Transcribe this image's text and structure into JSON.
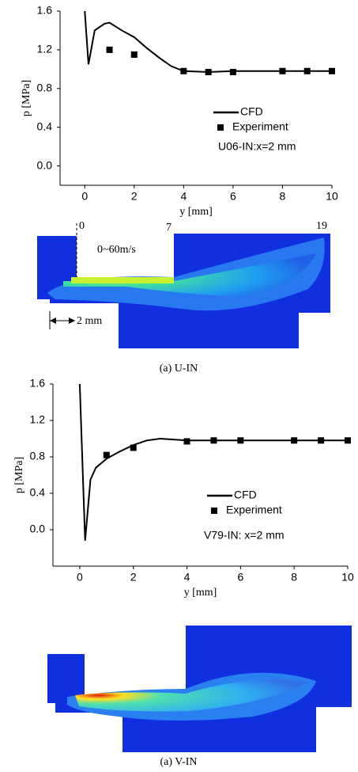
{
  "chart_data": [
    {
      "type": "line",
      "xlabel": "y [mm]",
      "ylabel": "p [MPa]",
      "annotation": "U06-IN:x=2 mm",
      "xlim": [
        -1,
        10
      ],
      "ylim": [
        -0.2,
        1.6
      ],
      "xticks": [
        0,
        2,
        4,
        6,
        8,
        10
      ],
      "yticks": [
        {
          "value": 0,
          "label": "0.0"
        },
        0.4,
        0.8,
        1.2,
        1.6
      ],
      "series": [
        {
          "name": "CFD",
          "type": "line",
          "color": "#000000",
          "x": [
            0,
            0.15,
            0.4,
            0.8,
            1.0,
            1.5,
            2,
            2.5,
            3,
            3.5,
            4,
            5,
            6,
            7,
            8,
            9,
            10
          ],
          "values": [
            1.6,
            1.05,
            1.4,
            1.47,
            1.48,
            1.4,
            1.33,
            1.22,
            1.12,
            1.03,
            0.98,
            0.97,
            0.98,
            0.98,
            0.98,
            0.98,
            0.98
          ]
        },
        {
          "name": "Experiment",
          "type": "scatter",
          "color": "#000000",
          "x": [
            1,
            2,
            4,
            5,
            6,
            8,
            9,
            10
          ],
          "values": [
            1.2,
            1.15,
            0.98,
            0.97,
            0.97,
            0.98,
            0.98,
            0.98
          ]
        }
      ]
    },
    {
      "type": "line",
      "xlabel": "y [mm]",
      "ylabel": "p [MPa]",
      "annotation": "V79-IN:  x=2 mm",
      "xlim": [
        -1,
        10
      ],
      "ylim": [
        -0.4,
        1.6
      ],
      "xticks": [
        0,
        2,
        4,
        6,
        8,
        10
      ],
      "yticks": [
        {
          "value": 0,
          "label": "0.0"
        },
        0.4,
        0.8,
        1.2,
        1.6
      ],
      "series": [
        {
          "name": "CFD",
          "type": "line",
          "color": "#000000",
          "x": [
            0,
            0.2,
            0.4,
            0.6,
            1,
            1.5,
            2,
            2.5,
            3,
            3.5,
            4,
            6,
            8,
            10
          ],
          "values": [
            1.6,
            -0.12,
            0.55,
            0.68,
            0.78,
            0.86,
            0.93,
            0.98,
            1.0,
            0.99,
            0.98,
            0.98,
            0.98,
            0.98
          ]
        },
        {
          "name": "Experiment",
          "type": "scatter",
          "color": "#000000",
          "x": [
            1,
            2,
            4,
            5,
            6,
            8,
            9,
            10
          ],
          "values": [
            0.82,
            0.9,
            0.97,
            0.98,
            0.98,
            0.98,
            0.98,
            0.98
          ]
        }
      ]
    }
  ],
  "figures": [
    {
      "marks": [
        "0",
        "7",
        "19"
      ],
      "velocity": "0~60m/s",
      "dimension": "2 mm",
      "caption": "(a) U-IN"
    },
    {
      "caption": "(a) V-IN"
    }
  ]
}
